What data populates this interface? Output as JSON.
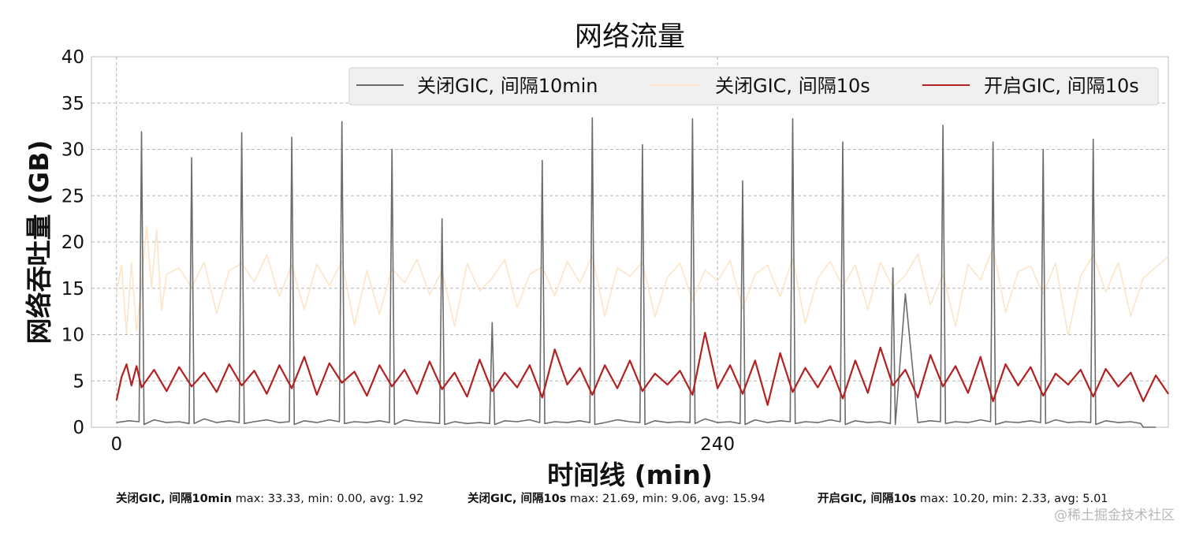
{
  "chart_data": {
    "type": "line",
    "title": "网络流量",
    "xlabel": "时间线 (min)",
    "ylabel": "网络吞吐量 (GB)",
    "x_ticks": [
      0,
      240
    ],
    "x_range": [
      -10,
      420
    ],
    "ylim": [
      0,
      40
    ],
    "y_ticks": [
      0,
      5,
      10,
      15,
      20,
      25,
      30,
      35,
      40
    ],
    "grid": true,
    "legend_position": "top-right",
    "series": [
      {
        "name": "关闭GIC, 间隔10min",
        "color": "#6b6b6b",
        "x": [
          0,
          5,
          9,
          10,
          11,
          15,
          20,
          25,
          29,
          30,
          31,
          35,
          40,
          45,
          49,
          50,
          51,
          55,
          60,
          65,
          69,
          70,
          71,
          75,
          80,
          85,
          89,
          90,
          91,
          95,
          100,
          105,
          109,
          110,
          111,
          115,
          120,
          125,
          129,
          130,
          131,
          135,
          140,
          145,
          149,
          150,
          151,
          155,
          160,
          165,
          169,
          170,
          171,
          175,
          180,
          185,
          189,
          190,
          191,
          195,
          200,
          205,
          209,
          210,
          211,
          215,
          220,
          225,
          229,
          230,
          231,
          235,
          240,
          245,
          249,
          250,
          251,
          255,
          260,
          265,
          269,
          270,
          271,
          275,
          280,
          285,
          289,
          290,
          291,
          295,
          300,
          305,
          309,
          310,
          311,
          315,
          320,
          325,
          329,
          330,
          331,
          335,
          340,
          345,
          349,
          350,
          351,
          355,
          360,
          365,
          369,
          370,
          371,
          375,
          380,
          385,
          389,
          390,
          391,
          395,
          400,
          405,
          409,
          410,
          411,
          415
        ],
        "y": [
          0.5,
          0.7,
          0.6,
          31.9,
          0.3,
          0.8,
          0.5,
          0.6,
          0.4,
          29.1,
          0.4,
          0.9,
          0.5,
          0.7,
          0.5,
          31.8,
          0.4,
          0.6,
          0.8,
          0.5,
          0.6,
          31.3,
          0.3,
          0.7,
          0.5,
          0.8,
          0.6,
          33.0,
          0.4,
          0.6,
          0.5,
          0.7,
          0.5,
          30.0,
          0.3,
          0.8,
          0.6,
          0.5,
          0.4,
          22.5,
          0.3,
          0.6,
          0.4,
          0.5,
          0.4,
          11.3,
          0.3,
          0.7,
          0.6,
          0.8,
          0.5,
          28.8,
          0.4,
          0.6,
          0.5,
          0.7,
          0.5,
          33.4,
          0.3,
          0.5,
          0.8,
          0.6,
          0.5,
          30.5,
          0.3,
          0.7,
          0.5,
          0.6,
          0.5,
          33.3,
          0.4,
          0.9,
          0.5,
          0.6,
          0.4,
          26.6,
          0.3,
          0.8,
          0.5,
          0.7,
          0.6,
          33.3,
          0.4,
          0.6,
          0.5,
          0.8,
          0.6,
          30.8,
          0.3,
          0.7,
          0.5,
          0.6,
          0.4,
          17.2,
          0.3,
          14.4,
          0.5,
          0.7,
          0.6,
          32.6,
          0.4,
          0.6,
          0.5,
          0.8,
          0.6,
          30.8,
          0.3,
          0.6,
          0.5,
          0.7,
          0.5,
          30.0,
          0.4,
          0.8,
          0.5,
          0.6,
          0.5,
          31.1,
          0.3,
          0.7,
          0.5,
          0.6,
          0.4,
          0.0,
          0.0,
          0.0
        ]
      },
      {
        "name": "关闭GIC, 间隔10s",
        "color": "#fce5c8",
        "x": [
          0,
          2,
          4,
          6,
          8,
          10,
          12,
          14,
          16,
          18,
          20,
          25,
          30,
          35,
          40,
          45,
          50,
          55,
          60,
          65,
          70,
          75,
          80,
          85,
          90,
          95,
          100,
          105,
          110,
          115,
          120,
          125,
          130,
          135,
          140,
          145,
          150,
          155,
          160,
          165,
          170,
          175,
          180,
          185,
          190,
          195,
          200,
          205,
          210,
          215,
          220,
          225,
          230,
          235,
          240,
          245,
          250,
          255,
          260,
          265,
          270,
          275,
          280,
          285,
          290,
          295,
          300,
          305,
          310,
          315,
          320,
          325,
          330,
          335,
          340,
          345,
          350,
          355,
          360,
          365,
          370,
          375,
          380,
          385,
          390,
          395,
          400,
          405,
          410,
          415,
          420
        ],
        "y": [
          14.5,
          17.5,
          10.1,
          17.8,
          10.3,
          15.5,
          21.7,
          15.1,
          21.3,
          12.6,
          16.5,
          17.2,
          15.1,
          17.8,
          12.3,
          16.9,
          17.7,
          15.7,
          18.6,
          14.1,
          17.5,
          12.7,
          17.6,
          15.3,
          17.9,
          11.0,
          16.9,
          12.2,
          17.1,
          15.6,
          18.1,
          14.3,
          16.9,
          10.9,
          17.7,
          14.7,
          16.1,
          18.1,
          12.9,
          16.5,
          17.3,
          14.2,
          17.9,
          15.6,
          18.5,
          12.0,
          17.2,
          16.3,
          17.8,
          11.9,
          16.2,
          17.7,
          13.7,
          17.0,
          15.8,
          18.0,
          12.8,
          16.5,
          17.5,
          14.1,
          18.2,
          11.2,
          16.1,
          17.9,
          15.2,
          17.5,
          12.7,
          17.8,
          15.1,
          16.4,
          18.7,
          13.2,
          16.5,
          10.9,
          17.6,
          15.9,
          19.4,
          12.4,
          16.8,
          17.4,
          14.4,
          17.7,
          9.9,
          16.3,
          18.6,
          14.6,
          17.8,
          12.0,
          16.1,
          17.3,
          18.4
        ]
      },
      {
        "name": "开启GIC, 间隔10s",
        "color": "#b22222",
        "x": [
          0,
          2,
          4,
          6,
          8,
          10,
          15,
          20,
          25,
          30,
          35,
          40,
          45,
          50,
          55,
          60,
          65,
          70,
          75,
          80,
          85,
          90,
          95,
          100,
          105,
          110,
          115,
          120,
          125,
          130,
          135,
          140,
          145,
          150,
          155,
          160,
          165,
          170,
          175,
          180,
          185,
          190,
          195,
          200,
          205,
          210,
          215,
          220,
          225,
          230,
          235,
          240,
          245,
          250,
          255,
          260,
          265,
          270,
          275,
          280,
          285,
          290,
          295,
          300,
          305,
          310,
          315,
          320,
          325,
          330,
          335,
          340,
          345,
          350,
          355,
          360,
          365,
          370,
          375,
          380,
          385,
          390,
          395,
          400,
          405,
          410,
          415,
          420
        ],
        "y": [
          2.9,
          5.4,
          6.8,
          4.5,
          6.6,
          4.3,
          6.2,
          3.9,
          6.5,
          4.4,
          5.9,
          3.8,
          6.8,
          4.5,
          6.1,
          3.6,
          6.7,
          4.2,
          7.6,
          3.5,
          6.9,
          4.8,
          6.0,
          3.4,
          6.7,
          4.4,
          6.2,
          3.6,
          7.1,
          4.1,
          5.9,
          3.3,
          7.3,
          3.9,
          5.9,
          4.3,
          6.7,
          3.2,
          8.4,
          4.6,
          6.4,
          3.5,
          6.7,
          4.2,
          7.2,
          3.9,
          5.8,
          4.6,
          6.1,
          3.5,
          10.2,
          4.2,
          6.7,
          3.6,
          7.2,
          2.4,
          8.0,
          3.8,
          6.4,
          4.3,
          6.6,
          3.1,
          7.2,
          3.7,
          8.6,
          4.5,
          6.2,
          3.2,
          7.8,
          4.4,
          6.6,
          3.7,
          7.6,
          2.8,
          6.8,
          4.5,
          6.5,
          3.4,
          5.8,
          4.6,
          6.2,
          3.3,
          6.3,
          4.4,
          5.9,
          2.8,
          5.6,
          3.6
        ]
      }
    ]
  },
  "stats": [
    {
      "name": "关闭GIC, 间隔10min",
      "text": " max: 33.33, min: 0.00, avg: 1.92"
    },
    {
      "name": "关闭GIC, 间隔10s",
      "text": "  max: 21.69, min: 9.06, avg: 15.94"
    },
    {
      "name": "开启GIC, 间隔10s",
      "text": " max: 10.20, min: 2.33, avg: 5.01"
    }
  ],
  "watermark": "@稀土掘金技术社区"
}
